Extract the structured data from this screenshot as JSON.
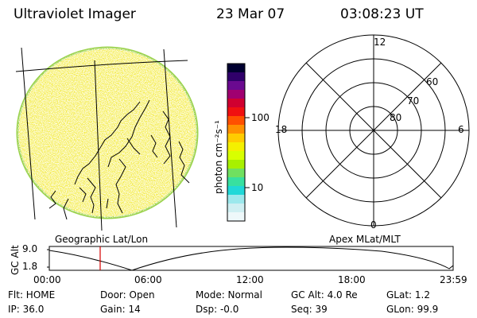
{
  "header": {
    "title": "Ultraviolet Imager",
    "date": "23 Mar 07",
    "time": "03:08:23 UT"
  },
  "colorbar": {
    "label": "photon cm⁻²s⁻¹",
    "ticks": [
      "100",
      "10"
    ],
    "colors": [
      "#000030",
      "#30006a",
      "#6a0a90",
      "#a00070",
      "#d00030",
      "#f01010",
      "#ff5000",
      "#ff9000",
      "#ffcc00",
      "#f4f000",
      "#d8ff00",
      "#a8f000",
      "#70e060",
      "#38e0a0",
      "#20d8d8",
      "#9ce8ec",
      "#cfeff2",
      "#eef8fa"
    ]
  },
  "polar": {
    "mlt_labels": [
      "12",
      "18",
      "6",
      "0"
    ],
    "lat_labels": [
      "60",
      "70",
      "80"
    ]
  },
  "left_panel_label": "Geographic Lat/Lon",
  "right_panel_label": "Apex MLat/MLT",
  "altitude": {
    "ylabel": "GC Alt",
    "yticks": [
      "9.0",
      "1.8"
    ],
    "xticks": [
      "00:00",
      "06:00",
      "12:00",
      "18:00",
      "23:59"
    ],
    "marker_time": "03:08"
  },
  "info": {
    "flt": "Flt: HOME",
    "ip": "IP: 36.0",
    "door": "Door: Open",
    "gain": "Gain: 14",
    "mode": "Mode: Normal",
    "dsp": "Dsp:    -0.0",
    "gcalt": "GC Alt: 4.0 Re",
    "seq": "Seq: 39",
    "glat": "GLat:    1.2",
    "glon": "GLon: 99.9"
  },
  "colors": {
    "disk": "#f4ec4a",
    "disk_edge": "#9ad24a",
    "marker": "#d40000"
  }
}
